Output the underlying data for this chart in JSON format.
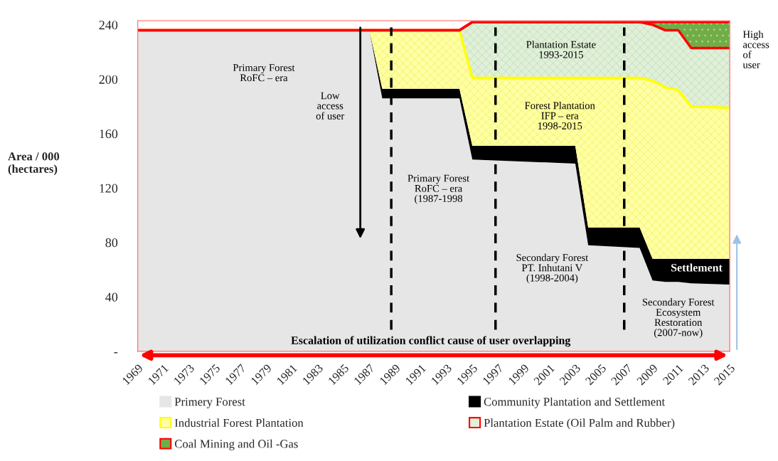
{
  "chart_data": {
    "type": "area",
    "stacked": true,
    "xlabel": null,
    "ylabel": "Area / 000\n(hectares)",
    "x": [
      1969,
      1987,
      1988,
      1994,
      1995,
      2003,
      2004,
      2008,
      2009,
      2010,
      2011,
      2012,
      2015
    ],
    "series": [
      {
        "name": "Primery Forest",
        "color": "#e6e6e6",
        "values": [
          236,
          236,
          186,
          186,
          141,
          138,
          78,
          76,
          52,
          51,
          51,
          50,
          49
        ]
      },
      {
        "name": "Community Plantation and Settlement",
        "color": "#000000",
        "values": [
          0,
          0,
          7,
          7,
          10,
          13,
          13,
          15,
          16,
          17,
          17,
          18,
          19
        ]
      },
      {
        "name": "Industrial Forest Plantation",
        "color": "#ffffa6",
        "values": [
          0,
          0,
          43,
          43,
          50,
          50,
          110,
          110,
          131,
          126,
          124,
          112,
          111
        ]
      },
      {
        "name": "Plantation Estate (Oil Palm and Rubber)",
        "color": "#e2f0d9",
        "values": [
          0,
          0,
          0,
          0,
          41,
          41,
          41,
          41,
          41,
          42,
          44,
          43,
          44
        ]
      },
      {
        "name": "Coal Mining and Oil -Gas",
        "color": "#70ad47",
        "values": [
          0,
          0,
          0,
          0,
          0,
          0,
          0,
          0,
          2,
          6,
          6,
          19,
          19
        ]
      }
    ],
    "xlim": [
      1969,
      2015
    ],
    "xticks": [
      1969,
      1971,
      1973,
      1975,
      1977,
      1979,
      1981,
      1983,
      1985,
      1987,
      1989,
      1991,
      1993,
      1995,
      1997,
      1999,
      2001,
      2003,
      2005,
      2007,
      2009,
      2011,
      2013,
      2015
    ],
    "ylim": [
      0,
      243
    ],
    "yticks": [
      {
        "value": 0,
        "label": "-"
      },
      40,
      80,
      120,
      160,
      200,
      240
    ],
    "ref_lines": [
      {
        "axis": "x",
        "value": 1988.7,
        "label": null,
        "color": "#000000",
        "line_style": "dashed"
      },
      {
        "axis": "x",
        "value": 1996.8,
        "label": null,
        "color": "#000000",
        "line_style": "dashed"
      },
      {
        "axis": "x",
        "value": 2006.8,
        "label": null,
        "color": "#000000",
        "line_style": "dashed"
      }
    ],
    "annotations": [
      "Primary Forest\nRoFC – era",
      "Low\naccess\nof user",
      "Primary Forest\nRoFC – era\n(1987-1998",
      "Plantation Estate\n1993-2015",
      "Forest Plantation\nIFP – era\n1998-2015",
      "Secondary Forest\nPT. Inhutani V\n(1998-2004)",
      "Settlement",
      "Secondary Forest\nEcosystem\nRestoration\n(2007-now)",
      "Escalation of utilization conflict cause of user overlapping",
      "High\naccess\nof\nuser"
    ],
    "grid": false,
    "legend": "bottom"
  }
}
